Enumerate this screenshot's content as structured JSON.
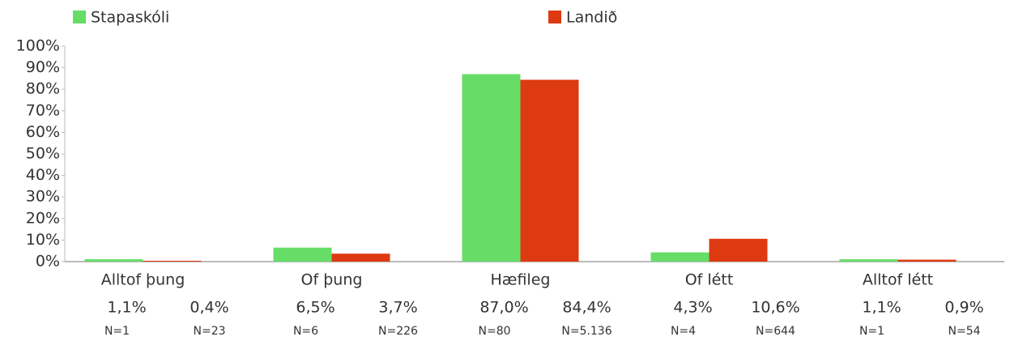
{
  "chart_data": {
    "type": "bar",
    "categories": [
      "Alltof þung",
      "Of þung",
      "Hæfileg",
      "Of létt",
      "Alltof létt"
    ],
    "series": [
      {
        "name": "Stapaskóli",
        "color": "#66dd66",
        "values": [
          1.1,
          6.5,
          87.0,
          4.3,
          1.1
        ],
        "value_labels": [
          "1,1%",
          "6,5%",
          "87,0%",
          "4,3%",
          "1,1%"
        ],
        "count_labels": [
          "N=1",
          "N=6",
          "N=80",
          "N=4",
          "N=1"
        ]
      },
      {
        "name": "Landið",
        "color": "#dd3a12",
        "values": [
          0.4,
          3.7,
          84.4,
          10.6,
          0.9
        ],
        "value_labels": [
          "0,4%",
          "3,7%",
          "84,4%",
          "10,6%",
          "0,9%"
        ],
        "count_labels": [
          "N=23",
          "N=226",
          "N=5.136",
          "N=644",
          "N=54"
        ]
      }
    ],
    "ylim": [
      0,
      100
    ],
    "yticks": [
      {
        "value": 0,
        "label": "0%"
      },
      {
        "value": 10,
        "label": "10%"
      },
      {
        "value": 20,
        "label": "20%"
      },
      {
        "value": 30,
        "label": "30%"
      },
      {
        "value": 40,
        "label": "40%"
      },
      {
        "value": 50,
        "label": "50%"
      },
      {
        "value": 60,
        "label": "60%"
      },
      {
        "value": 70,
        "label": "70%"
      },
      {
        "value": 80,
        "label": "80%"
      },
      {
        "value": 90,
        "label": "90%"
      },
      {
        "value": 100,
        "label": "100%"
      }
    ],
    "legend": "top"
  }
}
